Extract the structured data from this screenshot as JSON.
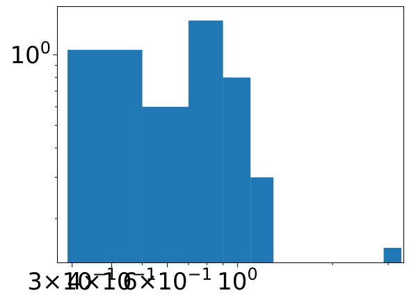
{
  "chart_data": {
    "type": "bar",
    "subtype": "histogram",
    "x_scale": "log",
    "y_scale": "log",
    "bar_color": "#1f77b4",
    "background": "#ffffff",
    "frame_color": "#000000",
    "grid": false,
    "xlim": [
      0.27,
      3.35
    ],
    "ylim": [
      0.13,
      1.6
    ],
    "bins": [
      {
        "x0": 0.29,
        "x1": 0.5,
        "value": 1.05
      },
      {
        "x0": 0.5,
        "x1": 0.7,
        "value": 0.6
      },
      {
        "x0": 0.7,
        "x1": 0.9,
        "value": 1.4
      },
      {
        "x0": 0.9,
        "x1": 1.1,
        "value": 0.8
      },
      {
        "x0": 1.1,
        "x1": 1.3,
        "value": 0.3
      },
      {
        "x0": 1.3,
        "x1": 1.55,
        "value": 0
      },
      {
        "x0": 2.9,
        "x1": 3.3,
        "value": 0.15
      }
    ],
    "x_ticks": [
      {
        "value": 0.3,
        "mantissa": "3",
        "times": "×",
        "base": "10",
        "exponent": "−1"
      },
      {
        "value": 0.4,
        "mantissa": "4",
        "times": "×",
        "base": "10",
        "exponent": "−1"
      },
      {
        "value": 0.6,
        "mantissa": "6",
        "times": "×",
        "base": "10",
        "exponent": "−1"
      },
      {
        "value": 1.0,
        "mantissa": "",
        "times": "",
        "base": "10",
        "exponent": "0"
      }
    ],
    "x_minor_ticks": [
      0.5,
      0.7,
      0.8,
      0.9,
      2,
      3
    ],
    "y_ticks": [
      {
        "value": 1.0,
        "base": "10",
        "exponent": "0"
      }
    ],
    "y_minor_ticks": [
      0.2,
      0.3,
      0.4,
      0.5,
      0.6,
      0.7,
      0.8,
      0.9
    ]
  }
}
